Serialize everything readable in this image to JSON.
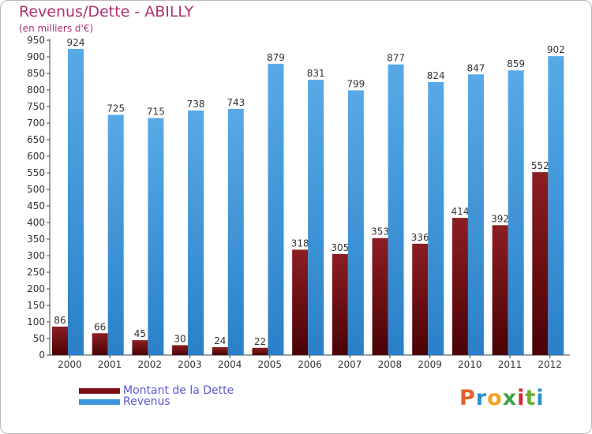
{
  "chart_data": {
    "type": "bar",
    "title": "Revenus/Dette - ABILLY",
    "subtitle": "(en milliers d'€)",
    "categories": [
      "2000",
      "2001",
      "2002",
      "2003",
      "2004",
      "2005",
      "2006",
      "2007",
      "2008",
      "2009",
      "2010",
      "2011",
      "2012"
    ],
    "series": [
      {
        "name": "Montant de la Dette",
        "color": "#7a0f14",
        "values": [
          86,
          66,
          45,
          30,
          24,
          22,
          318,
          305,
          353,
          336,
          414,
          392,
          552
        ]
      },
      {
        "name": "Revenus",
        "color": "#3d97dc",
        "values": [
          924,
          725,
          715,
          738,
          743,
          879,
          831,
          799,
          877,
          824,
          847,
          859,
          902
        ]
      }
    ],
    "ylim": [
      0,
      950
    ],
    "yticks": [
      0,
      50,
      100,
      150,
      200,
      250,
      300,
      350,
      400,
      450,
      500,
      550,
      600,
      650,
      700,
      750,
      800,
      850,
      900,
      950
    ],
    "grid": false,
    "legend_position": "bottom-left",
    "colors": {
      "title": "#b0306f",
      "legend_text": "#5b57d6"
    }
  },
  "logo": {
    "text": "Proxiti",
    "name": "proxiti-logo"
  }
}
